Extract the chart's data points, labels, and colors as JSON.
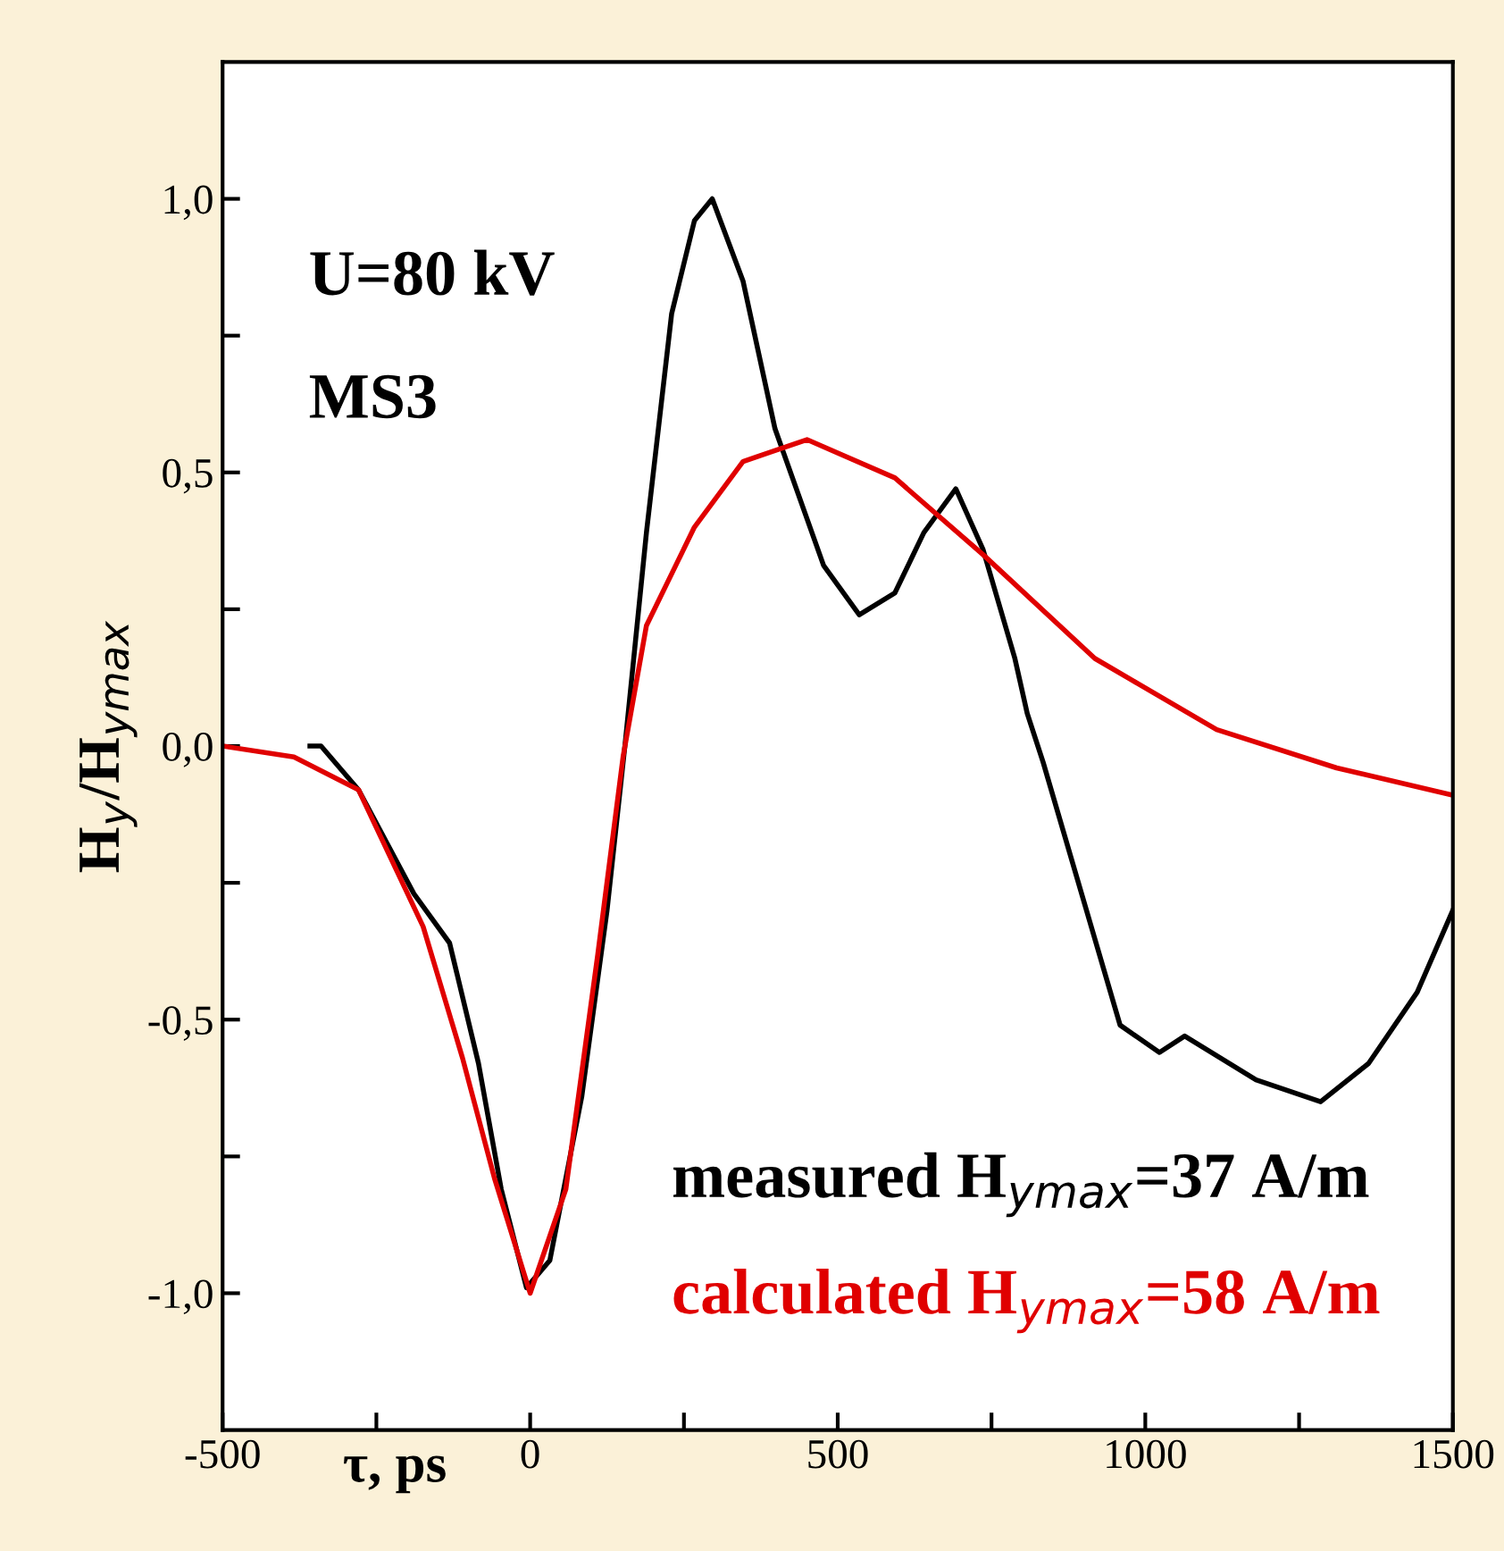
{
  "chart_data": {
    "type": "line",
    "xlabel": "τ, ps",
    "ylabel": "H$_{y}$/H$_{ymax}$",
    "xlim": [
      -500,
      1500
    ],
    "ylim": [
      -1.25,
      1.25
    ],
    "xticks": [
      -500,
      {
        "value": -250,
        "label": null
      },
      0,
      {
        "value": 250,
        "label": null
      },
      500,
      {
        "value": 750,
        "label": null
      },
      1000,
      {
        "value": 1250,
        "label": null
      },
      1500
    ],
    "yticks": [
      {
        "value": -1.0,
        "label": "-1,0"
      },
      {
        "value": -0.75,
        "label": null
      },
      {
        "value": -0.5,
        "label": "-0,5"
      },
      {
        "value": -0.25,
        "label": null
      },
      {
        "value": 0.0,
        "label": "0,0"
      },
      {
        "value": 0.25,
        "label": null
      },
      {
        "value": 0.5,
        "label": "0,5"
      },
      {
        "value": 0.75,
        "label": null
      },
      {
        "value": 1.0,
        "label": "1,0"
      }
    ],
    "grid": false,
    "legend": false,
    "marker": "none",
    "line_style": "solid",
    "annotations": [
      "U=80 kV",
      "MS3",
      "measured H$_{ymax}$=37 A/m",
      "calculated H$_{ymax}$=58 A/m"
    ],
    "series": [
      {
        "color": "#000000",
        "x": [
          -358,
          -340,
          -279,
          -189,
          -131,
          -84,
          -47,
          -6,
          32,
          84,
          125,
          154,
          189,
          230,
          267,
          296,
          346,
          398,
          477,
          535,
          593,
          640,
          692,
          736,
          788,
          808,
          834,
          959,
          1023,
          1064,
          1180,
          1285,
          1363,
          1442,
          1500
        ],
        "values": [
          0,
          0,
          -0.08,
          -0.27,
          -0.36,
          -0.58,
          -0.81,
          -0.99,
          -0.94,
          -0.64,
          -0.3,
          0,
          0.39,
          0.79,
          0.96,
          1.0,
          0.85,
          0.58,
          0.33,
          0.24,
          0.28,
          0.39,
          0.47,
          0.36,
          0.16,
          0.06,
          -0.03,
          -0.51,
          -0.56,
          -0.53,
          -0.61,
          -0.65,
          -0.58,
          -0.45,
          -0.3
        ]
      },
      {
        "color": "#e00000",
        "x": [
          -500,
          -384,
          -279,
          -174,
          -110,
          -58,
          0,
          58,
          110,
          151,
          189,
          267,
          346,
          450,
          593,
          736,
          918,
          1116,
          1311,
          1500
        ],
        "values": [
          0,
          -0.02,
          -0.08,
          -0.33,
          -0.57,
          -0.79,
          -1.0,
          -0.81,
          -0.38,
          -0.02,
          0.22,
          0.4,
          0.52,
          0.56,
          0.49,
          0.35,
          0.16,
          0.03,
          -0.04,
          -0.09
        ]
      }
    ]
  }
}
